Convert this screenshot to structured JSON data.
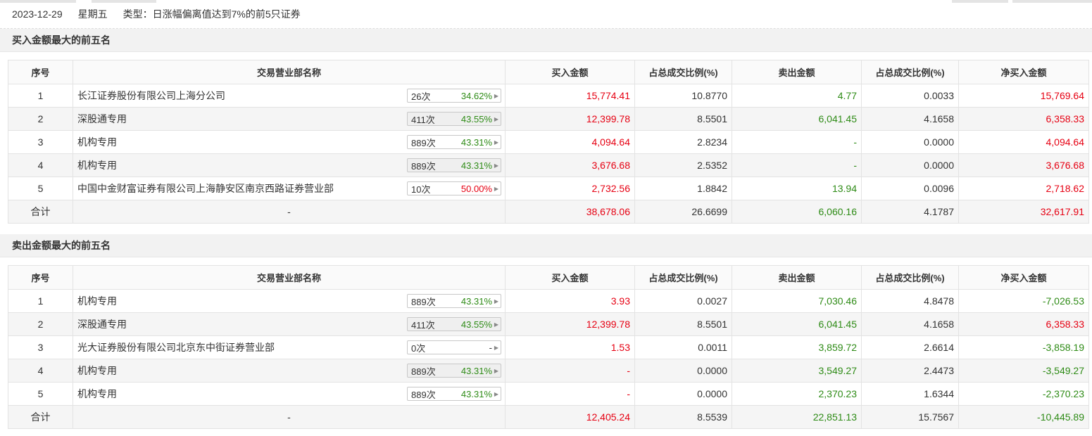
{
  "header": {
    "date": "2023-12-29",
    "weekday": "星期五",
    "type_label": "类型：日涨幅偏离值达到7%的前5只证券"
  },
  "columns": [
    "序号",
    "交易营业部名称",
    "买入金额",
    "占总成交比例(%)",
    "卖出金额",
    "占总成交比例(%)",
    "净买入金额"
  ],
  "buy_section": {
    "title": "买入金额最大的前五名",
    "rows": [
      {
        "no": "1",
        "name": "长江证券股份有限公司上海分公司",
        "times": "26次",
        "rate": "34.62%",
        "buy": "15,774.41",
        "buy_pct": "10.8770",
        "sell": "4.77",
        "sell_pct": "0.0033",
        "net": "15,769.64"
      },
      {
        "no": "2",
        "name": "深股通专用",
        "times": "411次",
        "rate": "43.55%",
        "buy": "12,399.78",
        "buy_pct": "8.5501",
        "sell": "6,041.45",
        "sell_pct": "4.1658",
        "net": "6,358.33"
      },
      {
        "no": "3",
        "name": "机构专用",
        "times": "889次",
        "rate": "43.31%",
        "buy": "4,094.64",
        "buy_pct": "2.8234",
        "sell": "-",
        "sell_pct": "0.0000",
        "net": "4,094.64"
      },
      {
        "no": "4",
        "name": "机构专用",
        "times": "889次",
        "rate": "43.31%",
        "buy": "3,676.68",
        "buy_pct": "2.5352",
        "sell": "-",
        "sell_pct": "0.0000",
        "net": "3,676.68"
      },
      {
        "no": "5",
        "name": "中国中金财富证券有限公司上海静安区南京西路证券营业部",
        "times": "10次",
        "rate": "50.00%",
        "buy": "2,732.56",
        "buy_pct": "1.8842",
        "sell": "13.94",
        "sell_pct": "0.0096",
        "net": "2,718.62"
      }
    ],
    "total": {
      "label": "合计",
      "name": "-",
      "buy": "38,678.06",
      "buy_pct": "26.6699",
      "sell": "6,060.16",
      "sell_pct": "4.1787",
      "net": "32,617.91"
    }
  },
  "sell_section": {
    "title": "卖出金额最大的前五名",
    "rows": [
      {
        "no": "1",
        "name": "机构专用",
        "times": "889次",
        "rate": "43.31%",
        "buy": "3.93",
        "buy_pct": "0.0027",
        "sell": "7,030.46",
        "sell_pct": "4.8478",
        "net": "-7,026.53"
      },
      {
        "no": "2",
        "name": "深股通专用",
        "times": "411次",
        "rate": "43.55%",
        "buy": "12,399.78",
        "buy_pct": "8.5501",
        "sell": "6,041.45",
        "sell_pct": "4.1658",
        "net": "6,358.33"
      },
      {
        "no": "3",
        "name": "光大证券股份有限公司北京东中街证券营业部",
        "times": "0次",
        "rate": "-",
        "buy": "1.53",
        "buy_pct": "0.0011",
        "sell": "3,859.72",
        "sell_pct": "2.6614",
        "net": "-3,858.19"
      },
      {
        "no": "4",
        "name": "机构专用",
        "times": "889次",
        "rate": "43.31%",
        "buy": "-",
        "buy_pct": "0.0000",
        "sell": "3,549.27",
        "sell_pct": "2.4473",
        "net": "-3,549.27"
      },
      {
        "no": "5",
        "name": "机构专用",
        "times": "889次",
        "rate": "43.31%",
        "buy": "-",
        "buy_pct": "0.0000",
        "sell": "2,370.23",
        "sell_pct": "1.6344",
        "net": "-2,370.23"
      }
    ],
    "total": {
      "label": "合计",
      "name": "-",
      "buy": "12,405.24",
      "buy_pct": "8.5539",
      "sell": "22,851.13",
      "sell_pct": "15.7567",
      "net": "-10,445.89"
    }
  },
  "colors": {
    "positive": "#e60012",
    "negative": "#2e8b16"
  }
}
